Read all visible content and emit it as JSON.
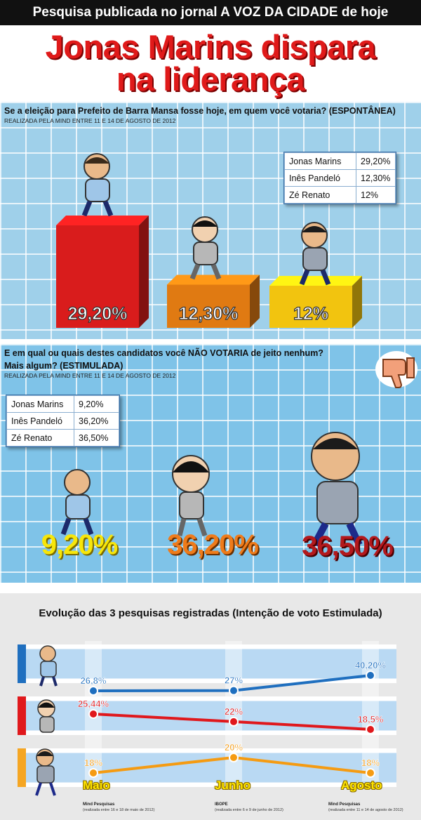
{
  "banner": "Pesquisa publicada no jornal A VOZ DA CIDADE de hoje",
  "headline": [
    "Jonas Marins dispara",
    "na liderança"
  ],
  "colors": {
    "red": "#d91c1c",
    "orange": "#e07a12",
    "yellow": "#f2c40f",
    "blue": "#1f6fbf",
    "headline": "#e01a1a"
  },
  "section1": {
    "question": "Se a eleição para Prefeito de Barra Mansa fosse hoje, em quem você votaria? (ESPONTÂNEA)",
    "source": "REALIZADA PELA MIND ENTRE 11 E 14 DE AGOSTO DE 2012",
    "table": [
      {
        "name": "Jonas Marins",
        "value": "29,20%"
      },
      {
        "name": "Inês Pandeló",
        "value": "12,30%"
      },
      {
        "name": "Zé Renato",
        "value": "12%"
      }
    ]
  },
  "section2": {
    "question": "E em qual ou quais destes candidatos você NÃO VOTARIA de jeito nenhum?",
    "question2": "Mais algum? (ESTIMULADA)",
    "source": "REALIZADA PELA MIND ENTRE 11 E 14 DE AGOSTO DE 2012",
    "table": [
      {
        "name": "Jonas Marins",
        "value": "9,20%"
      },
      {
        "name": "Inês Pandeló",
        "value": "36,20%"
      },
      {
        "name": "Zé Renato",
        "value": "36,50%"
      }
    ],
    "pct_labels": [
      "9,20%",
      "36,20%",
      "36,50%"
    ]
  },
  "section3": {
    "title": "Evolução das 3 pesquisas registradas (Intenção de voto Estimulada)",
    "months": [
      "Maio",
      "Junho",
      "Agosto"
    ],
    "sources": [
      {
        "name": "Mind Pesquisas",
        "date": "(realizada entre 16 e 18 de maio de 2012)"
      },
      {
        "name": "IBOPE",
        "date": "(realizada entre 6 e 9 de junho de 2012)"
      },
      {
        "name": "Mind Pesquisas",
        "date": "(realizada entre 11 e 14 de agosto de 2012)"
      }
    ]
  },
  "chart_data": [
    {
      "type": "bar",
      "categories": [
        "Jonas Marins",
        "Inês Pandeló",
        "Zé Renato"
      ],
      "values": [
        29.2,
        12.3,
        12
      ],
      "labels": [
        "29,20%",
        "12,30%",
        "12%"
      ],
      "colors": [
        "#d91c1c",
        "#e07a12",
        "#f2c40f"
      ]
    },
    {
      "type": "line",
      "x": [
        "Maio",
        "Junho",
        "Agosto"
      ],
      "series": [
        {
          "color": "#1f6fbf",
          "values": [
            26.8,
            27,
            40.2
          ],
          "labels": [
            "26,8%",
            "27%",
            "40,20%"
          ]
        },
        {
          "color": "#e0181c",
          "values": [
            25.44,
            22,
            18.5
          ],
          "labels": [
            "25,44%",
            "22%",
            "18,5%"
          ]
        },
        {
          "color": "#f59b12",
          "values": [
            18,
            20,
            18
          ],
          "labels": [
            "18%",
            "20%",
            "18%"
          ]
        }
      ]
    }
  ]
}
